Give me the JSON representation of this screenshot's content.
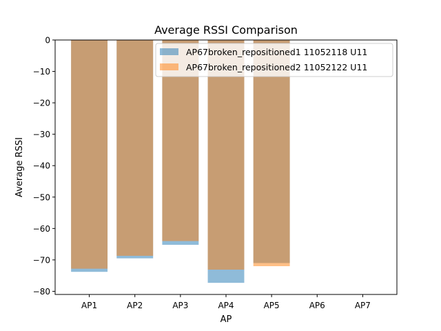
{
  "chart_data": {
    "type": "bar",
    "title": "Average RSSI Comparison",
    "xlabel": "AP",
    "ylabel": "Average RSSI",
    "categories": [
      "AP1",
      "AP2",
      "AP3",
      "AP4",
      "AP5",
      "AP6",
      "AP7"
    ],
    "ylim": [
      -81,
      0
    ],
    "yticks": [
      0,
      -10,
      -20,
      -30,
      -40,
      -50,
      -60,
      -70,
      -80
    ],
    "ytick_labels": [
      "0",
      "−10",
      "−20",
      "−30",
      "−40",
      "−50",
      "−60",
      "−70",
      "−80"
    ],
    "grid": false,
    "legend_position": "top-right",
    "series": [
      {
        "name": "AP67broken_repositioned1 11052118 U11",
        "color": "#1f77b4",
        "opacity": 0.5,
        "values": [
          -73.8,
          -69.5,
          -65.2,
          -77.3,
          -71.0,
          null,
          null
        ]
      },
      {
        "name": "AP67broken_repositioned2 11052122 U11",
        "color": "#ff7f0e",
        "opacity": 0.5,
        "values": [
          -72.8,
          -68.7,
          -64.0,
          -73.1,
          -72.0,
          null,
          null
        ]
      }
    ]
  }
}
